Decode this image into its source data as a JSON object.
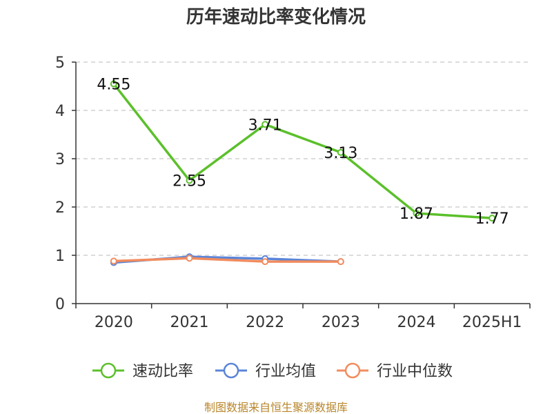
{
  "chart_data": {
    "type": "line",
    "title": "历年速动比率变化情况",
    "categories": [
      "2020",
      "2021",
      "2022",
      "2023",
      "2024",
      "2025H1"
    ],
    "ylim": [
      0,
      5
    ],
    "yticks": [
      "0",
      "1",
      "2",
      "3",
      "4",
      "5"
    ],
    "grid": "horizontal-dashed",
    "legend_position": "bottom",
    "series": [
      {
        "name": "速动比率",
        "color": "#5bc02a",
        "values": [
          4.55,
          2.55,
          3.71,
          3.13,
          1.87,
          1.77
        ],
        "labels": [
          "4.55",
          "2.55",
          "3.71",
          "3.13",
          "1.87",
          "1.77"
        ]
      },
      {
        "name": "行业均值",
        "color": "#5b85d8",
        "values": [
          0.85,
          0.97,
          0.93,
          0.87,
          null,
          null
        ]
      },
      {
        "name": "行业中位数",
        "color": "#f28c5e",
        "values": [
          0.88,
          0.94,
          0.87,
          0.87,
          null,
          null
        ]
      }
    ]
  },
  "source": "制图数据来自恒生聚源数据库"
}
